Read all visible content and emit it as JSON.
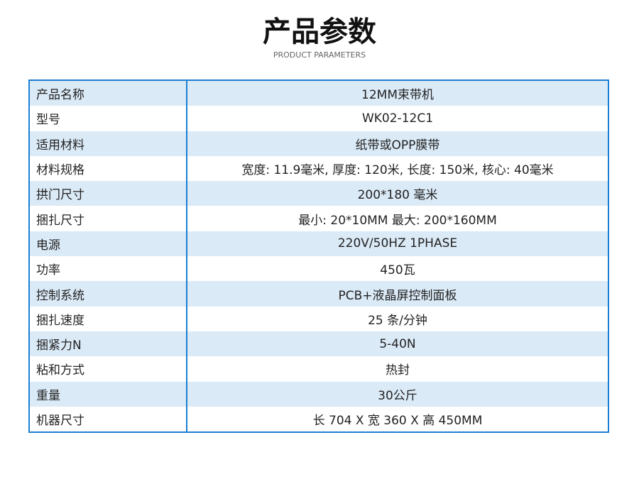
{
  "header": {
    "title": "产品参数",
    "subtitle": "PRODUCT PARAMETERS"
  },
  "table": {
    "rows": [
      [
        "产品名称",
        "12MM束带机"
      ],
      [
        "型号",
        "WK02-12C1"
      ],
      [
        "适用材料",
        "纸带或OPP膜带"
      ],
      [
        "材料规格",
        "宽度: 11.9毫米, 厚度: 120米, 长度: 150米, 核心: 40毫米"
      ],
      [
        "拱门尺寸",
        "200*180 毫米"
      ],
      [
        "捆扎尺寸",
        "最小: 20*10MM 最大: 200*160MM"
      ],
      [
        "电源",
        "220V/50HZ  1PHASE"
      ],
      [
        "功率",
        "450瓦"
      ],
      [
        "控制系统",
        "PCB+液晶屏控制面板"
      ],
      [
        "捆扎速度",
        "25 条/分钟"
      ],
      [
        "捆紧力N",
        "5-40N"
      ],
      [
        "粘和方式",
        "热封"
      ],
      [
        "重量",
        "30公斤"
      ],
      [
        "机器尺寸",
        "长 704 X 宽 360 X 高 450MM"
      ]
    ]
  }
}
